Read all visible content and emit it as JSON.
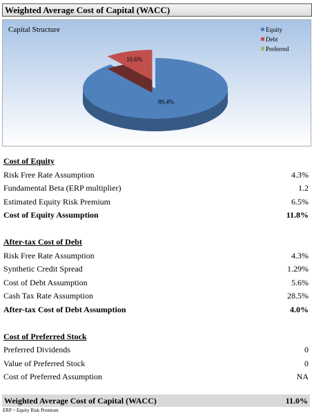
{
  "header": {
    "title": "Weighted Average Cost of Capital (WACC)"
  },
  "chart_data": {
    "type": "pie",
    "title": "Capital Structure",
    "categories": [
      "Equity",
      "Debt",
      "Preferred"
    ],
    "values": [
      89.4,
      10.6,
      0
    ],
    "value_labels": [
      "89.4%",
      "10.6%",
      null
    ],
    "colors": [
      "#4f81bd",
      "#c0504d",
      "#9bbb59"
    ],
    "legend": "top-right"
  },
  "sections": [
    {
      "title": "Cost of Equity",
      "rows": [
        [
          "Risk Free Rate Assumption",
          "4.3%"
        ],
        [
          "Fundamental Beta (ERP multiplier)",
          "1.2"
        ],
        [
          "Estimated Equity Risk Premium",
          "6.5%"
        ]
      ],
      "result": [
        "Cost of Equity Assumption",
        "11.8%"
      ]
    },
    {
      "title": "After-tax Cost of Debt",
      "rows": [
        [
          "Risk Free Rate Assumption",
          "4.3%"
        ],
        [
          "Synthetic Credit Spread",
          "1.29%"
        ],
        [
          "Cost of Debt Assumption",
          "5.6%"
        ],
        [
          "Cash Tax Rate Assumption",
          "28.5%"
        ]
      ],
      "result": [
        "After-tax Cost of Debt Assumption",
        "4.0%"
      ]
    },
    {
      "title": "Cost of Preferred Stock",
      "rows": [
        [
          "Preferred Dividends",
          "0"
        ],
        [
          "Value of Preferred Stock",
          "0"
        ],
        [
          "Cost of Preferred Assumption",
          "NA"
        ]
      ]
    }
  ],
  "footer": {
    "label": "Weighted Average Cost of Capital (WACC)",
    "value": "11.0%",
    "note": "ERP = Equity Risk Premium"
  }
}
